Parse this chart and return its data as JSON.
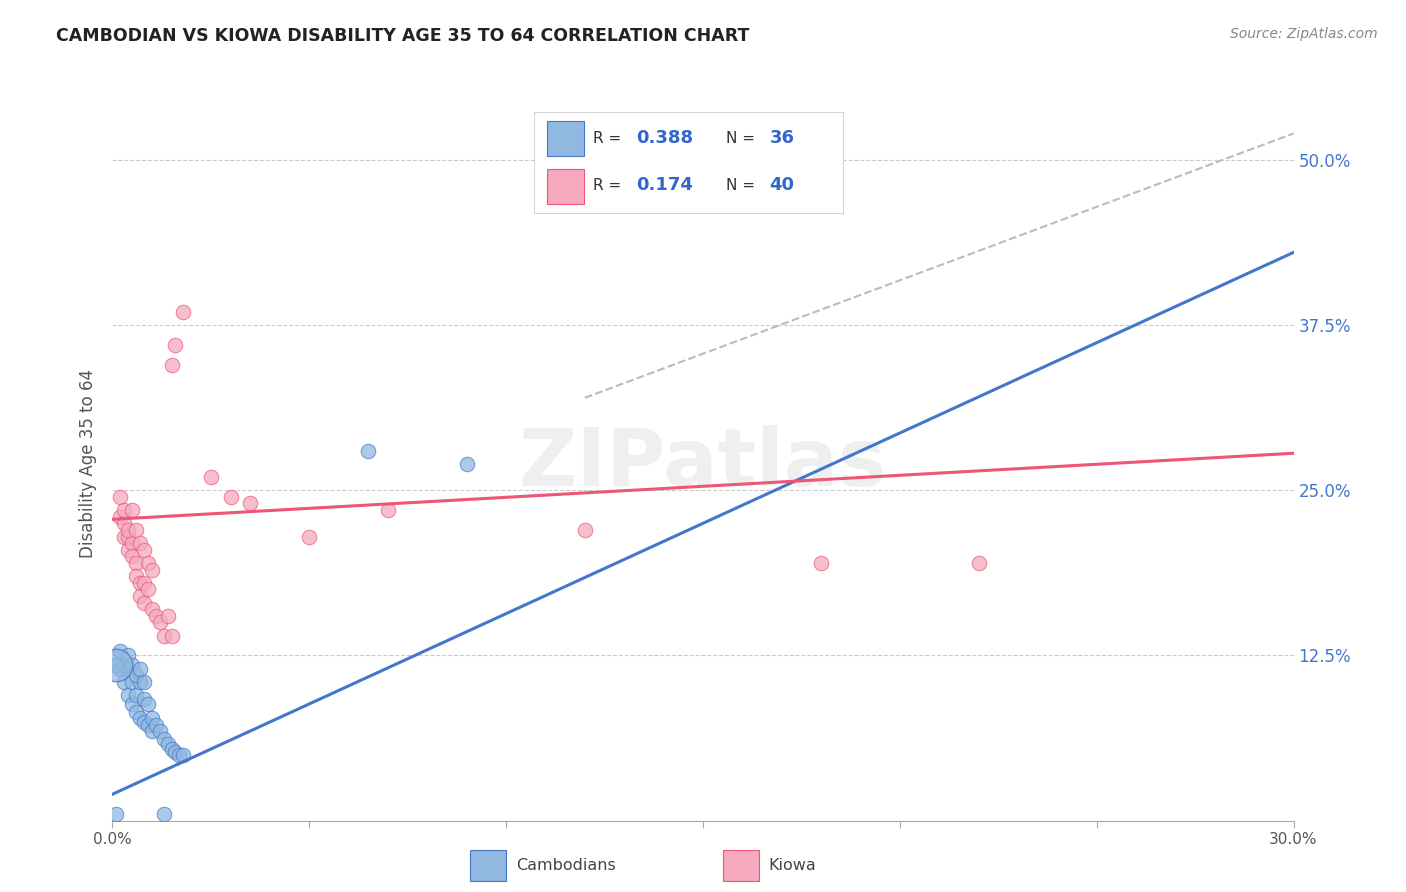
{
  "title": "CAMBODIAN VS KIOWA DISABILITY AGE 35 TO 64 CORRELATION CHART",
  "source": "Source: ZipAtlas.com",
  "ylabel": "Disability Age 35 to 64",
  "xlim": [
    0.0,
    0.3
  ],
  "ylim": [
    0.0,
    0.54
  ],
  "blue_color": "#90B8E0",
  "pink_color": "#F5A8BE",
  "blue_line_color": "#4477CC",
  "pink_line_color": "#EE5577",
  "dashed_line_color": "#BBBBBB",
  "blue_line": [
    [
      0.0,
      0.02
    ],
    [
      0.3,
      0.43
    ]
  ],
  "pink_line": [
    [
      0.0,
      0.228
    ],
    [
      0.3,
      0.278
    ]
  ],
  "dash_line": [
    [
      0.12,
      0.32
    ],
    [
      0.3,
      0.52
    ]
  ],
  "cambodian_dots": [
    [
      0.002,
      0.115
    ],
    [
      0.003,
      0.105
    ],
    [
      0.004,
      0.115
    ],
    [
      0.004,
      0.095
    ],
    [
      0.005,
      0.105
    ],
    [
      0.005,
      0.088
    ],
    [
      0.006,
      0.095
    ],
    [
      0.006,
      0.082
    ],
    [
      0.007,
      0.105
    ],
    [
      0.007,
      0.078
    ],
    [
      0.008,
      0.092
    ],
    [
      0.008,
      0.075
    ],
    [
      0.009,
      0.088
    ],
    [
      0.009,
      0.072
    ],
    [
      0.01,
      0.078
    ],
    [
      0.01,
      0.068
    ],
    [
      0.011,
      0.072
    ],
    [
      0.012,
      0.068
    ],
    [
      0.013,
      0.062
    ],
    [
      0.014,
      0.058
    ],
    [
      0.015,
      0.054
    ],
    [
      0.016,
      0.052
    ],
    [
      0.017,
      0.05
    ],
    [
      0.018,
      0.05
    ],
    [
      0.002,
      0.128
    ],
    [
      0.003,
      0.118
    ],
    [
      0.004,
      0.125
    ],
    [
      0.005,
      0.118
    ],
    [
      0.006,
      0.11
    ],
    [
      0.007,
      0.115
    ],
    [
      0.008,
      0.105
    ],
    [
      0.001,
      0.118
    ],
    [
      0.001,
      0.005
    ],
    [
      0.013,
      0.005
    ],
    [
      0.065,
      0.28
    ],
    [
      0.09,
      0.27
    ]
  ],
  "cambodian_sizes": [
    100,
    100,
    100,
    100,
    100,
    100,
    100,
    100,
    100,
    100,
    100,
    100,
    100,
    100,
    100,
    100,
    100,
    100,
    100,
    100,
    100,
    100,
    100,
    100,
    100,
    100,
    100,
    100,
    100,
    100,
    100,
    100,
    100,
    100,
    100,
    100
  ],
  "cambodian_large": [
    [
      0.001,
      0.118
    ]
  ],
  "kiowa_dots": [
    [
      0.002,
      0.23
    ],
    [
      0.003,
      0.225
    ],
    [
      0.003,
      0.215
    ],
    [
      0.004,
      0.215
    ],
    [
      0.004,
      0.205
    ],
    [
      0.005,
      0.21
    ],
    [
      0.005,
      0.2
    ],
    [
      0.006,
      0.195
    ],
    [
      0.006,
      0.185
    ],
    [
      0.007,
      0.18
    ],
    [
      0.007,
      0.17
    ],
    [
      0.008,
      0.18
    ],
    [
      0.008,
      0.165
    ],
    [
      0.009,
      0.175
    ],
    [
      0.01,
      0.16
    ],
    [
      0.011,
      0.155
    ],
    [
      0.012,
      0.15
    ],
    [
      0.013,
      0.14
    ],
    [
      0.014,
      0.155
    ],
    [
      0.015,
      0.14
    ],
    [
      0.002,
      0.245
    ],
    [
      0.003,
      0.235
    ],
    [
      0.004,
      0.22
    ],
    [
      0.005,
      0.235
    ],
    [
      0.006,
      0.22
    ],
    [
      0.007,
      0.21
    ],
    [
      0.008,
      0.205
    ],
    [
      0.009,
      0.195
    ],
    [
      0.01,
      0.19
    ],
    [
      0.015,
      0.345
    ],
    [
      0.016,
      0.36
    ],
    [
      0.018,
      0.385
    ],
    [
      0.025,
      0.26
    ],
    [
      0.03,
      0.245
    ],
    [
      0.035,
      0.24
    ],
    [
      0.05,
      0.215
    ],
    [
      0.07,
      0.235
    ],
    [
      0.12,
      0.22
    ],
    [
      0.18,
      0.195
    ],
    [
      0.22,
      0.195
    ]
  ],
  "kiowa_sizes": [
    100,
    100,
    100,
    100,
    100,
    100,
    100,
    100,
    100,
    100,
    100,
    100,
    100,
    100,
    100,
    100,
    100,
    100,
    100,
    100,
    100,
    100,
    100,
    100,
    100,
    100,
    100,
    100,
    100,
    100,
    100,
    100,
    100,
    100,
    100,
    100,
    100,
    100,
    100,
    100
  ]
}
